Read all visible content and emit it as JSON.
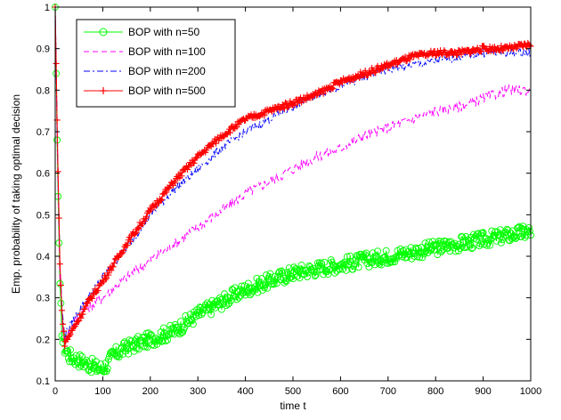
{
  "chart_data": {
    "type": "line",
    "title": "",
    "xlabel": "time t",
    "ylabel": "Emp. probability of taking optimal decision",
    "xlim": [
      0,
      1000
    ],
    "ylim": [
      0.1,
      1
    ],
    "x_ticks": [
      "0",
      "100",
      "200",
      "300",
      "400",
      "500",
      "600",
      "700",
      "800",
      "900",
      "1000"
    ],
    "y_ticks": [
      "0.1",
      "0.2",
      "0.3",
      "0.4",
      "0.5",
      "0.6",
      "0.7",
      "0.8",
      "0.9",
      "1"
    ],
    "grid": false,
    "legend_position": "top-left",
    "series": [
      {
        "name": "BOP with n=50",
        "color": "#00ff00",
        "style": "solid",
        "marker": "circle",
        "x": [
          0,
          5,
          10,
          15,
          20,
          30,
          40,
          50,
          60,
          70,
          80,
          90,
          100,
          110,
          120,
          150,
          200,
          250,
          300,
          350,
          400,
          450,
          500,
          550,
          600,
          650,
          700,
          750,
          800,
          850,
          900,
          950,
          1000
        ],
        "y": [
          1.0,
          0.6,
          0.32,
          0.2,
          0.18,
          0.16,
          0.155,
          0.15,
          0.145,
          0.14,
          0.135,
          0.13,
          0.13,
          0.14,
          0.16,
          0.18,
          0.2,
          0.22,
          0.26,
          0.29,
          0.32,
          0.34,
          0.36,
          0.37,
          0.38,
          0.39,
          0.4,
          0.41,
          0.42,
          0.43,
          0.44,
          0.45,
          0.46
        ]
      },
      {
        "name": "BOP with n=100",
        "color": "#ff00ff",
        "style": "dashed",
        "marker": "none",
        "x": [
          0,
          5,
          10,
          15,
          20,
          30,
          40,
          50,
          75,
          100,
          150,
          200,
          250,
          300,
          350,
          400,
          450,
          500,
          550,
          600,
          650,
          700,
          750,
          800,
          850,
          900,
          950,
          1000
        ],
        "y": [
          1.0,
          0.62,
          0.35,
          0.24,
          0.2,
          0.22,
          0.24,
          0.26,
          0.28,
          0.3,
          0.35,
          0.39,
          0.43,
          0.47,
          0.51,
          0.55,
          0.58,
          0.61,
          0.64,
          0.66,
          0.69,
          0.71,
          0.73,
          0.75,
          0.76,
          0.78,
          0.8,
          0.8
        ]
      },
      {
        "name": "BOP with n=200",
        "color": "#0000ff",
        "style": "dashdot",
        "marker": "none",
        "x": [
          0,
          5,
          10,
          15,
          20,
          30,
          40,
          50,
          75,
          100,
          150,
          200,
          250,
          300,
          350,
          400,
          450,
          500,
          550,
          600,
          650,
          700,
          750,
          800,
          850,
          900,
          950,
          1000
        ],
        "y": [
          1.0,
          0.65,
          0.38,
          0.26,
          0.21,
          0.23,
          0.25,
          0.27,
          0.31,
          0.35,
          0.42,
          0.5,
          0.56,
          0.61,
          0.66,
          0.7,
          0.73,
          0.76,
          0.79,
          0.81,
          0.83,
          0.85,
          0.86,
          0.87,
          0.88,
          0.89,
          0.89,
          0.89
        ]
      },
      {
        "name": "BOP with n=500",
        "color": "#ff0000",
        "style": "solid",
        "marker": "plus",
        "x": [
          0,
          5,
          10,
          15,
          20,
          30,
          40,
          50,
          75,
          100,
          150,
          200,
          250,
          300,
          350,
          400,
          450,
          500,
          550,
          600,
          650,
          700,
          750,
          800,
          850,
          900,
          950,
          1000
        ],
        "y": [
          1.0,
          0.66,
          0.38,
          0.25,
          0.19,
          0.21,
          0.23,
          0.25,
          0.3,
          0.34,
          0.43,
          0.51,
          0.58,
          0.64,
          0.69,
          0.73,
          0.75,
          0.77,
          0.79,
          0.82,
          0.84,
          0.86,
          0.88,
          0.89,
          0.89,
          0.9,
          0.9,
          0.91
        ]
      }
    ]
  }
}
